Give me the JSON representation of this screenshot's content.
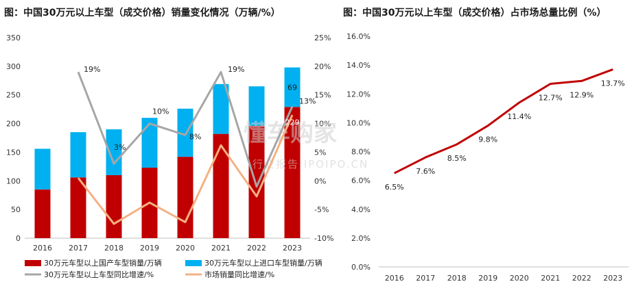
{
  "chart_data": [
    {
      "type": "bar",
      "title": "图：中国30万元以上车型（成交价格）销量变化情况（万辆/%）",
      "categories": [
        "2016",
        "2017",
        "2018",
        "2019",
        "2020",
        "2021",
        "2022",
        "2023"
      ],
      "y_left_ticks": [
        "0",
        "50",
        "100",
        "150",
        "200",
        "250",
        "300",
        "350"
      ],
      "y_right_ticks": [
        "-10%",
        "-5%",
        "0%",
        "5%",
        "10%",
        "15%",
        "20%",
        "25%"
      ],
      "ylim_left": [
        0,
        350
      ],
      "ylim_right": [
        -10,
        25
      ],
      "stacked": true,
      "series": [
        {
          "name": "30万元车型以上国产车型销量/万辆",
          "type": "bar",
          "color": "#C00000",
          "values": [
            85,
            106,
            110,
            123,
            142,
            182,
            196,
            229
          ]
        },
        {
          "name": "30万元车型以上进口车型销量/万辆",
          "type": "bar",
          "color": "#00B0F0",
          "values": [
            71,
            79,
            80,
            87,
            84,
            87,
            69,
            69
          ]
        },
        {
          "name": "30万元车型以上车型同比增速/%",
          "type": "line",
          "axis": "right",
          "color": "#A6A6A6",
          "values": [
            null,
            19,
            3,
            10,
            8,
            19,
            -1,
            13
          ]
        },
        {
          "name": "市场销量同比增速/%",
          "type": "line",
          "axis": "right",
          "color": "#F4B183",
          "values": [
            null,
            0.5,
            -7.5,
            -3.8,
            -7.2,
            6.2,
            -2.7,
            11.5
          ]
        }
      ],
      "annotations": [
        {
          "text": "19%",
          "x": "2017",
          "series": 2
        },
        {
          "text": "3%",
          "x": "2018",
          "series": 2
        },
        {
          "text": "10%",
          "x": "2019",
          "series": 2
        },
        {
          "text": "8%",
          "x": "2020",
          "series": 2
        },
        {
          "text": "19%",
          "x": "2021",
          "series": 2
        },
        {
          "text": "13%",
          "x": "2023",
          "series": 2
        },
        {
          "text": "69",
          "x": "2023",
          "series": 1
        },
        {
          "text": "229",
          "x": "2023",
          "series": 0
        }
      ],
      "legend_placement": "bottom"
    },
    {
      "type": "line",
      "title": "图：中国30万元以上车型（成交价格）占市场总量比例（%）",
      "x": [
        "2016",
        "2017",
        "2018",
        "2019",
        "2020",
        "2021",
        "2022",
        "2023"
      ],
      "values": [
        6.5,
        7.6,
        8.5,
        9.8,
        11.4,
        12.7,
        12.9,
        13.7
      ],
      "data_labels": [
        "6.5%",
        "7.6%",
        "8.5%",
        "9.8%",
        "11.4%",
        "12.7%",
        "12.9%",
        "13.7%"
      ],
      "y_ticks": [
        "0.0%",
        "2.0%",
        "4.0%",
        "6.0%",
        "8.0%",
        "10.0%",
        "12.0%",
        "14.0%",
        "16.0%"
      ],
      "ylim": [
        0,
        16
      ],
      "color": "#C00000"
    }
  ],
  "watermark": {
    "main": "懂车购家",
    "sub": "行业报告 IPOIPO.CN"
  }
}
